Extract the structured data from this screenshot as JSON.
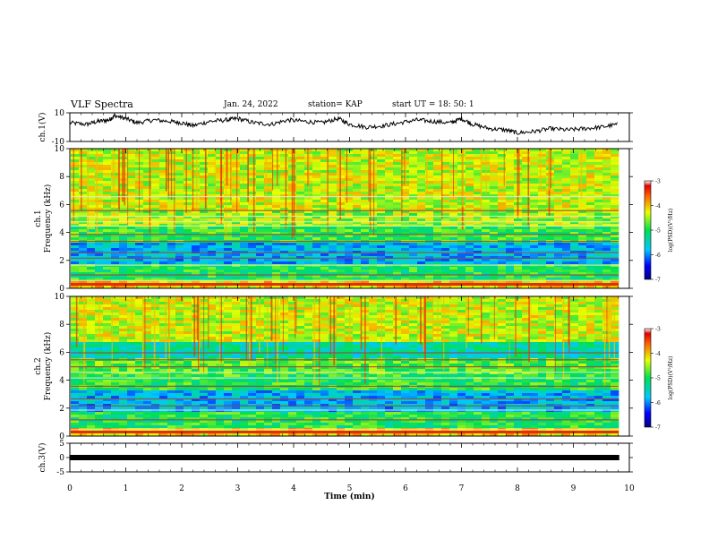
{
  "header": {
    "title": "VLF Spectra",
    "date": "Jan. 24, 2022",
    "station": "station= KAP",
    "start": "start UT = 18: 50: 1"
  },
  "chart_data": [
    {
      "name": "waveform-ch1",
      "type": "line",
      "ylabel": "ch.1(V)",
      "ylim": [
        -10,
        10
      ],
      "yticks": [
        "10",
        "-10"
      ],
      "xlim": [
        0,
        10
      ],
      "series": [
        {
          "x": [
            0,
            0.3,
            0.5,
            0.7,
            0.8,
            1.0,
            1.2,
            1.5,
            1.8,
            2.0,
            2.2,
            2.5,
            2.8,
            3.0,
            3.3,
            3.6,
            3.9,
            4.2,
            4.5,
            4.8,
            5.0,
            5.3,
            5.6,
            5.9,
            6.2,
            6.5,
            6.8,
            7.0,
            7.2,
            7.5,
            7.8,
            8.0,
            8.3,
            8.6,
            8.9,
            9.2,
            9.5,
            9.8
          ],
          "y": [
            3,
            2,
            4,
            5,
            8,
            6,
            3,
            5,
            4,
            3,
            1,
            4,
            5,
            6,
            3,
            2,
            5,
            4,
            3,
            6,
            2,
            0,
            1,
            3,
            5,
            4,
            3,
            6,
            2,
            -1,
            -2,
            -4,
            -3,
            -1,
            -2,
            -1,
            0,
            2
          ]
        }
      ]
    },
    {
      "name": "spectrogram-ch1",
      "type": "heatmap",
      "ylabel": "ch.1 Frequency (kHz)",
      "ylim": [
        0,
        10
      ],
      "yticks": [
        "0",
        "2",
        "4",
        "6",
        "8",
        "10"
      ],
      "xlim": [
        0,
        10
      ],
      "colorbar": {
        "label": "log(PSD)(V²/Hz)",
        "range": [
          -7,
          -3
        ],
        "ticks": [
          "-3",
          "-4",
          "-5",
          "-6",
          "-7"
        ]
      }
    },
    {
      "name": "spectrogram-ch2",
      "type": "heatmap",
      "ylabel": "ch.2 Frequency (kHz)",
      "ylim": [
        0,
        10
      ],
      "yticks": [
        "0",
        "2",
        "4",
        "6",
        "8",
        "10"
      ],
      "xlim": [
        0,
        10
      ],
      "colorbar": {
        "label": "log(PSD)(V²/Hz)",
        "range": [
          -7,
          -3
        ],
        "ticks": [
          "-3",
          "-4",
          "-5",
          "-6",
          "-7"
        ]
      }
    },
    {
      "name": "waveform-ch3",
      "type": "line",
      "ylabel": "ch.3(V)",
      "ylim": [
        -5,
        5
      ],
      "yticks": [
        "5",
        "0",
        "-5"
      ],
      "xlim": [
        0,
        10
      ],
      "series": [
        {
          "x": [
            0,
            9.82
          ],
          "y": [
            0,
            0
          ]
        }
      ]
    }
  ],
  "xaxis": {
    "label": "Time (min)",
    "ticks": [
      "0",
      "1",
      "2",
      "3",
      "4",
      "5",
      "6",
      "7",
      "8",
      "9",
      "10"
    ]
  }
}
